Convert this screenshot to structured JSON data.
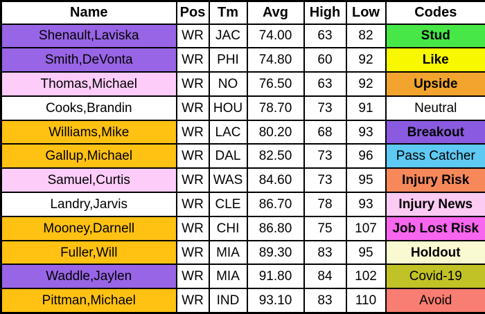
{
  "table": {
    "headers": [
      "Name",
      "Pos",
      "Tm",
      "Avg",
      "High",
      "Low",
      "Codes"
    ],
    "rows": [
      {
        "name": "Shenault,Laviska",
        "pos": "WR",
        "tm": "JAC",
        "avg": "74.00",
        "high": "63",
        "low": "82",
        "code": "Stud",
        "name_bg": "#9865E6",
        "code_bg": "#47E747",
        "code_bold": true
      },
      {
        "name": "Smith,DeVonta",
        "pos": "WR",
        "tm": "PHI",
        "avg": "74.80",
        "high": "60",
        "low": "92",
        "code": "Like",
        "name_bg": "#9865E6",
        "code_bg": "#F8F800",
        "code_bold": true
      },
      {
        "name": "Thomas,Michael",
        "pos": "WR",
        "tm": "NO",
        "avg": "76.50",
        "high": "63",
        "low": "92",
        "code": "Upside",
        "name_bg": "#FDCCF9",
        "code_bg": "#F2A42E",
        "code_bold": true
      },
      {
        "name": "Cooks,Brandin",
        "pos": "WR",
        "tm": "HOU",
        "avg": "78.70",
        "high": "73",
        "low": "91",
        "code": "Neutral",
        "name_bg": "#FFFFFF",
        "code_bg": "#FFFFFF",
        "code_bold": false
      },
      {
        "name": "Williams,Mike",
        "pos": "WR",
        "tm": "LAC",
        "avg": "80.20",
        "high": "68",
        "low": "93",
        "code": "Breakout",
        "name_bg": "#FFC112",
        "code_bg": "#8A5BE0",
        "code_bold": true
      },
      {
        "name": "Gallup,Michael",
        "pos": "WR",
        "tm": "DAL",
        "avg": "82.50",
        "high": "73",
        "low": "96",
        "code": "Pass Catcher",
        "name_bg": "#FFC112",
        "code_bg": "#5EC9F2",
        "code_bold": false
      },
      {
        "name": "Samuel,Curtis",
        "pos": "WR",
        "tm": "WAS",
        "avg": "84.60",
        "high": "73",
        "low": "95",
        "code": "Injury Risk",
        "name_bg": "#FDCCF9",
        "code_bg": "#F6885A",
        "code_bold": true
      },
      {
        "name": "Landry,Jarvis",
        "pos": "WR",
        "tm": "CLE",
        "avg": "86.70",
        "high": "78",
        "low": "93",
        "code": "Injury News",
        "name_bg": "#FFFFFF",
        "code_bg": "#FBCBF3",
        "code_bold": true
      },
      {
        "name": "Mooney,Darnell",
        "pos": "WR",
        "tm": "CHI",
        "avg": "86.80",
        "high": "75",
        "low": "107",
        "code": "Job Lost Risk",
        "name_bg": "#FFC112",
        "code_bg": "#F766EE",
        "code_bold": true
      },
      {
        "name": "Fuller,Will",
        "pos": "WR",
        "tm": "MIA",
        "avg": "89.30",
        "high": "83",
        "low": "95",
        "code": "Holdout",
        "name_bg": "#FFC112",
        "code_bg": "#FAFAD2",
        "code_bold": true
      },
      {
        "name": "Waddle,Jaylen",
        "pos": "WR",
        "tm": "MIA",
        "avg": "91.80",
        "high": "84",
        "low": "102",
        "code": "Covid-19",
        "name_bg": "#9865E6",
        "code_bg": "#C1C226",
        "code_bold": false
      },
      {
        "name": "Pittman,Michael",
        "pos": "WR",
        "tm": "IND",
        "avg": "93.10",
        "high": "83",
        "low": "110",
        "code": "Avoid",
        "name_bg": "#FFC112",
        "code_bg": "#F87D72",
        "code_bold": false
      }
    ]
  }
}
